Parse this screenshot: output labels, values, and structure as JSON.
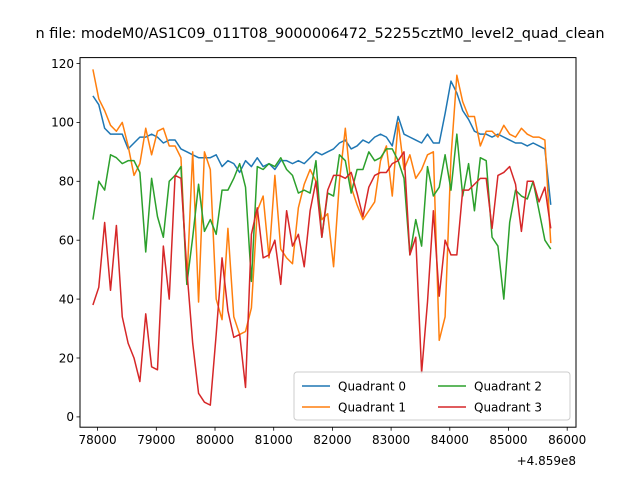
{
  "chart_data": {
    "type": "line",
    "title": "n file: modeM0/AS1C09_011T08_9000006472_52255cztM0_level2_quad_clean",
    "xlabel": "",
    "ylabel": "",
    "x_offset_label": "+4.859e8",
    "xlim": [
      77700,
      86150
    ],
    "ylim": [
      -3.5,
      122
    ],
    "x_ticks": [
      78000,
      79000,
      80000,
      81000,
      82000,
      83000,
      84000,
      85000,
      86000
    ],
    "y_ticks": [
      0,
      20,
      40,
      60,
      80,
      100,
      120
    ],
    "grid": false,
    "legend": {
      "position": "lower-right",
      "columns": 2
    },
    "x": [
      77920,
      78020,
      78120,
      78220,
      78320,
      78420,
      78520,
      78620,
      78720,
      78820,
      78920,
      79020,
      79120,
      79220,
      79320,
      79420,
      79520,
      79620,
      79720,
      79820,
      79920,
      80020,
      80120,
      80220,
      80320,
      80420,
      80520,
      80620,
      80720,
      80820,
      80920,
      81020,
      81120,
      81220,
      81320,
      81420,
      81520,
      81620,
      81720,
      81820,
      81920,
      82020,
      82120,
      82220,
      82320,
      82420,
      82520,
      82620,
      82720,
      82820,
      82920,
      83020,
      83120,
      83220,
      83320,
      83420,
      83520,
      83620,
      83720,
      83820,
      83920,
      84020,
      84120,
      84220,
      84320,
      84420,
      84520,
      84620,
      84720,
      84820,
      84920,
      85020,
      85120,
      85220,
      85320,
      85420,
      85520,
      85620,
      85720
    ],
    "series": [
      {
        "name": "Quadrant 0",
        "color": "#1f77b4",
        "values": [
          109,
          106,
          98,
          96,
          96,
          96,
          91,
          93,
          95,
          95,
          96,
          95,
          93,
          94,
          94,
          91,
          90,
          89,
          88,
          88,
          88,
          89,
          85,
          87,
          86,
          83,
          87,
          85,
          88,
          85,
          86,
          84,
          87,
          87,
          86,
          87,
          86,
          88,
          90,
          89,
          90,
          91,
          93,
          94,
          91,
          92,
          94,
          93,
          95,
          96,
          95,
          92,
          102,
          96,
          95,
          94,
          93,
          96,
          93,
          93,
          103,
          114,
          110,
          104,
          101,
          97,
          96,
          96,
          95,
          96,
          95,
          94,
          93,
          93,
          92,
          93,
          92,
          91,
          72
        ]
      },
      {
        "name": "Quadrant 1",
        "color": "#ff7f0e",
        "values": [
          118,
          108,
          104,
          99,
          97,
          100,
          92,
          82,
          86,
          98,
          89,
          97,
          98,
          92,
          92,
          88,
          45,
          90,
          39,
          90,
          84,
          40,
          33,
          64,
          34,
          28,
          29,
          37,
          70,
          75,
          54,
          82,
          57,
          54,
          52,
          71,
          79,
          84,
          80,
          67,
          69,
          51,
          80,
          98,
          78,
          72,
          67,
          70,
          73,
          87,
          92,
          75,
          100,
          84,
          89,
          81,
          84,
          89,
          90,
          26,
          34,
          88,
          116,
          107,
          102,
          102,
          92,
          97,
          97,
          95,
          99,
          96,
          95,
          98,
          96,
          95,
          95,
          94,
          59
        ]
      },
      {
        "name": "Quadrant 2",
        "color": "#2ca02c",
        "values": [
          67,
          80,
          77,
          89,
          88,
          86,
          87,
          87,
          83,
          56,
          81,
          68,
          61,
          80,
          82,
          85,
          45,
          61,
          79,
          63,
          67,
          62,
          77,
          77,
          81,
          86,
          78,
          46,
          85,
          84,
          86,
          85,
          88,
          84,
          82,
          76,
          77,
          76,
          87,
          61,
          76,
          75,
          89,
          87,
          76,
          84,
          84,
          90,
          87,
          88,
          91,
          91,
          87,
          81,
          55,
          67,
          58,
          85,
          75,
          78,
          89,
          77,
          96,
          75,
          86,
          70,
          88,
          87,
          61,
          58,
          40,
          66,
          77,
          75,
          74,
          80,
          70,
          60,
          57
        ]
      },
      {
        "name": "Quadrant 3",
        "color": "#d62728",
        "values": [
          38,
          44,
          66,
          43,
          65,
          34,
          25,
          20,
          12,
          35,
          17,
          16,
          58,
          40,
          82,
          81,
          50,
          25,
          8,
          5,
          4,
          28,
          54,
          36,
          27,
          28,
          10,
          62,
          71,
          54,
          55,
          60,
          45,
          70,
          58,
          62,
          51,
          70,
          80,
          61,
          77,
          82,
          82,
          81,
          83,
          76,
          68,
          78,
          82,
          83,
          83,
          86,
          87,
          90,
          55,
          61,
          15,
          39,
          70,
          41,
          60,
          55,
          55,
          77,
          77,
          79,
          81,
          81,
          64,
          82,
          83,
          85,
          79,
          63,
          80,
          80,
          73,
          78,
          64
        ]
      }
    ]
  }
}
